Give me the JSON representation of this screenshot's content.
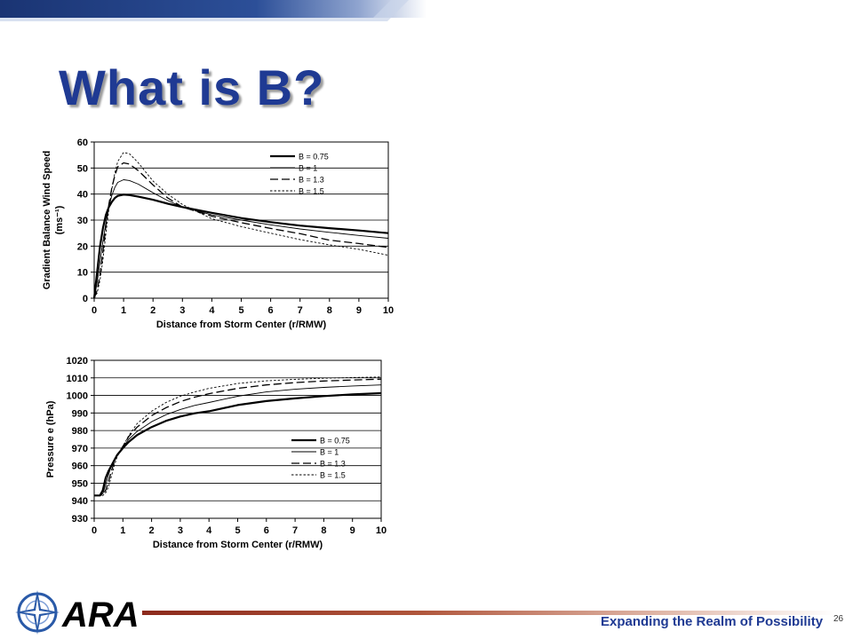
{
  "slide": {
    "title": "What is B?",
    "tagline": "Expanding the Realm of Possibility",
    "page_number": "26",
    "logo_text": "ARA"
  },
  "colors": {
    "title": "#1f3a93",
    "tagline": "#1f3a93",
    "accent_line": "#8c2a1c",
    "logo": "#2a5aa8"
  },
  "chart_data": [
    {
      "type": "line",
      "xlabel": "Distance from Storm Center (r/RMW)",
      "ylabel": "Gradient Balance Wind Speed",
      "ylabel_unit": "(ms⁻¹)",
      "xlim": [
        0,
        10
      ],
      "ylim": [
        0,
        60
      ],
      "xticks": [
        0,
        1,
        2,
        3,
        4,
        5,
        6,
        7,
        8,
        9,
        10
      ],
      "yticks": [
        0,
        10,
        20,
        30,
        40,
        50,
        60
      ],
      "grid": "horizontal",
      "legend_position": "top-right",
      "x": [
        0,
        0.1,
        0.2,
        0.3,
        0.4,
        0.5,
        0.6,
        0.7,
        0.8,
        1,
        1.2,
        1.5,
        2,
        2.5,
        3,
        4,
        5,
        6,
        7,
        8,
        9,
        10
      ],
      "series": [
        {
          "name": "B = 0.75",
          "style": "solid-thick",
          "values": [
            0,
            10,
            20,
            27,
            32,
            35,
            37,
            38.5,
            39.3,
            39.8,
            39.6,
            39,
            37.8,
            36.3,
            35,
            32.8,
            30.8,
            29.2,
            27.9,
            26.9,
            26,
            25
          ]
        },
        {
          "name": "B = 1",
          "style": "solid-thin",
          "values": [
            0,
            6,
            14,
            22,
            29,
            35,
            39.5,
            42.5,
            44.5,
            45.5,
            45.2,
            43.8,
            40.5,
            37.5,
            35,
            32,
            30,
            28.2,
            26.6,
            25.3,
            24.1,
            23
          ]
        },
        {
          "name": "B = 1.3",
          "style": "dashed",
          "values": [
            0,
            3,
            9,
            18,
            28,
            36,
            42.5,
            47,
            50.5,
            52,
            51.5,
            49,
            43.5,
            38.5,
            35,
            31.5,
            29,
            26.8,
            24.8,
            22.3,
            21,
            19.5
          ]
        },
        {
          "name": "B = 1.5",
          "style": "dotted",
          "values": [
            0,
            2,
            7,
            15,
            25,
            34,
            42,
            48,
            52.5,
            56,
            55.5,
            52,
            45,
            40,
            36,
            30.5,
            27.5,
            25,
            22.5,
            20.5,
            18.8,
            16.5
          ]
        }
      ]
    },
    {
      "type": "line",
      "xlabel": "Distance from Storm Center (r/RMW)",
      "ylabel": "Pressure e (hPa)",
      "xlim": [
        0,
        10
      ],
      "ylim": [
        930,
        1020
      ],
      "xticks": [
        0,
        1,
        2,
        3,
        4,
        5,
        6,
        7,
        8,
        9,
        10
      ],
      "yticks": [
        930,
        940,
        950,
        960,
        970,
        980,
        990,
        1000,
        1010,
        1020
      ],
      "grid": "horizontal",
      "legend_position": "center-right",
      "x": [
        0,
        0.2,
        0.3,
        0.4,
        0.5,
        0.6,
        0.7,
        0.8,
        1,
        1.2,
        1.5,
        2,
        2.5,
        3,
        3.5,
        4,
        5,
        6,
        7,
        8,
        9,
        10
      ],
      "series": [
        {
          "name": "B = 0.75",
          "style": "solid-thick",
          "values": [
            943,
            943,
            946,
            953,
            957,
            960,
            963,
            966,
            970,
            973.5,
            977.5,
            982,
            985.5,
            988,
            989.8,
            991,
            994.5,
            996.8,
            998.3,
            999.6,
            1000.6,
            1001.3
          ]
        },
        {
          "name": "B = 1",
          "style": "solid-thin",
          "values": [
            943,
            943,
            944,
            949,
            955,
            960,
            963.5,
            966.5,
            970.5,
            975,
            979.5,
            985,
            989,
            992,
            994.3,
            996,
            999.5,
            1002,
            1003.5,
            1004.6,
            1005.4,
            1006
          ]
        },
        {
          "name": "B = 1.3",
          "style": "dashed",
          "values": [
            943,
            943,
            943.5,
            946,
            951,
            957,
            962,
            966,
            971,
            976.5,
            982,
            988.5,
            993,
            996.5,
            999,
            1001,
            1004,
            1006,
            1007.3,
            1008.2,
            1008.8,
            1009.3
          ]
        },
        {
          "name": "B = 1.5",
          "style": "dotted",
          "values": [
            943,
            943,
            943,
            944.5,
            948,
            954,
            960,
            965,
            971,
            977,
            984,
            991,
            996,
            999.5,
            1002,
            1004,
            1006.8,
            1008.3,
            1009.2,
            1009.8,
            1010.2,
            1010.5
          ]
        }
      ]
    }
  ]
}
